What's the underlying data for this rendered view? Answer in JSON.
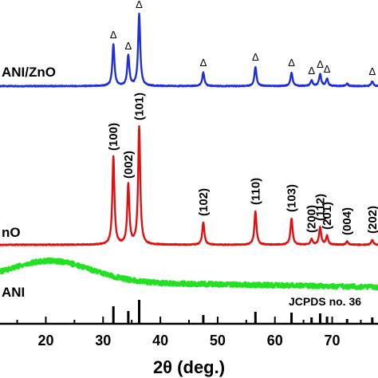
{
  "chart_data": {
    "type": "line",
    "xlabel": "2θ (deg.)",
    "ylabel": "",
    "xlim": [
      12,
      78
    ],
    "x_ticks": [
      20,
      30,
      40,
      50,
      60,
      70
    ],
    "grid": false,
    "series": [
      {
        "name": "PANI/ZnO",
        "label": "ANI/ZnO",
        "color": "#1f2fd8",
        "baseline": 0,
        "peaks": [
          {
            "x": 31.8,
            "height": 52,
            "marker": "Δ"
          },
          {
            "x": 34.4,
            "height": 38,
            "marker": "Δ"
          },
          {
            "x": 36.3,
            "height": 90,
            "marker": "Δ"
          },
          {
            "x": 47.5,
            "height": 17,
            "marker": "Δ"
          },
          {
            "x": 56.6,
            "height": 24,
            "marker": "Δ"
          },
          {
            "x": 62.9,
            "height": 17,
            "marker": "Δ"
          },
          {
            "x": 66.4,
            "height": 7,
            "marker": "Δ"
          },
          {
            "x": 67.9,
            "height": 15,
            "marker": "Δ"
          },
          {
            "x": 69.1,
            "height": 9,
            "marker": "Δ"
          },
          {
            "x": 72.6,
            "height": 3,
            "marker": ""
          },
          {
            "x": 77.0,
            "height": 6,
            "marker": "Δ"
          }
        ]
      },
      {
        "name": "ZnO",
        "label": "nO",
        "color": "#e01010",
        "baseline": 0,
        "peaks": [
          {
            "x": 31.8,
            "height": 110,
            "hkl": "(100)"
          },
          {
            "x": 34.4,
            "height": 75,
            "hkl": "(002)"
          },
          {
            "x": 36.3,
            "height": 148,
            "hkl": "(101)"
          },
          {
            "x": 47.5,
            "height": 28,
            "hkl": "(102)"
          },
          {
            "x": 56.6,
            "height": 42,
            "hkl": "(110)"
          },
          {
            "x": 62.9,
            "height": 33,
            "hkl": "(103)"
          },
          {
            "x": 66.4,
            "height": 7,
            "hkl": "(200)"
          },
          {
            "x": 67.9,
            "height": 22,
            "hkl": "(112)"
          },
          {
            "x": 69.1,
            "height": 11,
            "hkl": "(201)"
          },
          {
            "x": 72.6,
            "height": 4,
            "hkl": "(004)"
          },
          {
            "x": 77.0,
            "height": 6,
            "hkl": "(202)"
          }
        ]
      },
      {
        "name": "PANI",
        "label": "ANI",
        "color": "#22e022",
        "baseline": 0,
        "broad_peak": {
          "center": 21,
          "height": 26,
          "width": 7
        }
      }
    ],
    "reference": {
      "label": "JCPDS no. 36",
      "color": "#000000",
      "lines": [
        {
          "x": 31.8,
          "height": 22
        },
        {
          "x": 34.4,
          "height": 16
        },
        {
          "x": 36.3,
          "height": 30
        },
        {
          "x": 47.5,
          "height": 11
        },
        {
          "x": 56.6,
          "height": 15
        },
        {
          "x": 62.9,
          "height": 14
        },
        {
          "x": 66.4,
          "height": 8
        },
        {
          "x": 67.9,
          "height": 13
        },
        {
          "x": 69.1,
          "height": 9
        },
        {
          "x": 72.6,
          "height": 6
        },
        {
          "x": 77.0,
          "height": 8
        }
      ]
    }
  }
}
